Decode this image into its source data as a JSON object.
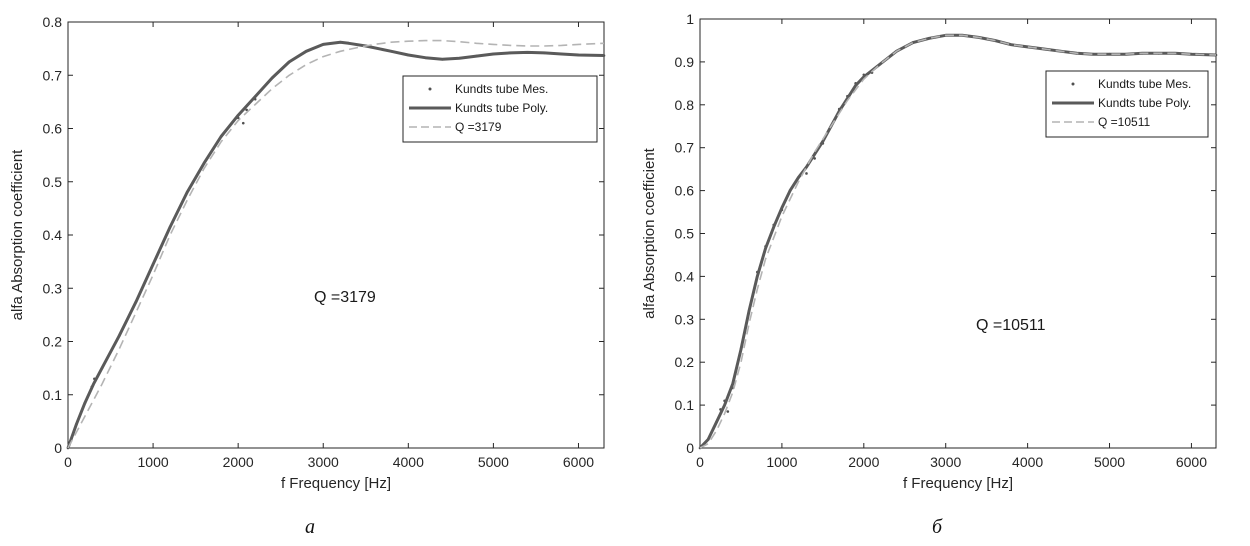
{
  "chart_data": [
    {
      "type": "line",
      "title": "",
      "xlabel": "f Frequency [Hz]",
      "ylabel": "alfa Absorption coefficient",
      "xlim": [
        0,
        6300
      ],
      "ylim": [
        0,
        0.8
      ],
      "xticks": [
        0,
        1000,
        2000,
        3000,
        4000,
        5000,
        6000
      ],
      "yticks": [
        0,
        0.1,
        0.2,
        0.3,
        0.4,
        0.5,
        0.6,
        0.7,
        0.8
      ],
      "ytick_labels": [
        "0",
        "0.1",
        "0.2",
        "0.3",
        "0.4",
        "0.5",
        "0.6",
        "0.7",
        "0.8"
      ],
      "grid": false,
      "legend": "top-right",
      "annotation": "Q =3179",
      "caption": "a",
      "series": [
        {
          "name": "Kundts tube Mes.",
          "style": "dots",
          "color": "#505050",
          "x": [
            0,
            100,
            200,
            280,
            310,
            400,
            600,
            800,
            1000,
            1200,
            1400,
            1600,
            1800,
            2000,
            2060,
            2100,
            2200,
            2400,
            2600,
            2800,
            3000,
            3200,
            3300,
            3500,
            3800,
            4000,
            4200,
            4400,
            4600,
            4800,
            5000,
            5200,
            5400,
            5600,
            5800,
            6000,
            6300
          ],
          "y": [
            0,
            0.045,
            0.085,
            0.115,
            0.13,
            0.15,
            0.21,
            0.275,
            0.345,
            0.415,
            0.48,
            0.535,
            0.585,
            0.62,
            0.61,
            0.635,
            0.655,
            0.695,
            0.725,
            0.745,
            0.758,
            0.762,
            0.76,
            0.755,
            0.745,
            0.738,
            0.733,
            0.73,
            0.732,
            0.736,
            0.74,
            0.742,
            0.743,
            0.742,
            0.74,
            0.738,
            0.737
          ]
        },
        {
          "name": "Kundts tube Poly.",
          "style": "solid",
          "color": "#5a5a5a",
          "x": [
            0,
            100,
            200,
            300,
            400,
            600,
            800,
            1000,
            1200,
            1400,
            1600,
            1800,
            2000,
            2200,
            2400,
            2600,
            2800,
            3000,
            3200,
            3300,
            3500,
            3800,
            4000,
            4200,
            4400,
            4600,
            4800,
            5000,
            5200,
            5400,
            5600,
            5800,
            6000,
            6300
          ],
          "y": [
            0,
            0.045,
            0.085,
            0.12,
            0.15,
            0.21,
            0.275,
            0.345,
            0.415,
            0.48,
            0.535,
            0.585,
            0.625,
            0.66,
            0.695,
            0.725,
            0.745,
            0.758,
            0.762,
            0.76,
            0.755,
            0.745,
            0.738,
            0.733,
            0.73,
            0.732,
            0.736,
            0.74,
            0.742,
            0.743,
            0.742,
            0.74,
            0.738,
            0.737
          ]
        },
        {
          "name": "Q =3179",
          "style": "dashed",
          "color": "#b4b4b4",
          "x": [
            0,
            200,
            400,
            600,
            800,
            1000,
            1200,
            1400,
            1600,
            1800,
            2000,
            2200,
            2400,
            2600,
            2800,
            3000,
            3200,
            3400,
            3600,
            3800,
            4000,
            4200,
            4400,
            4600,
            4800,
            5000,
            5200,
            5400,
            5600,
            5800,
            6000,
            6300
          ],
          "y": [
            0,
            0.06,
            0.12,
            0.185,
            0.255,
            0.325,
            0.4,
            0.465,
            0.525,
            0.575,
            0.615,
            0.645,
            0.675,
            0.7,
            0.72,
            0.735,
            0.745,
            0.752,
            0.758,
            0.762,
            0.764,
            0.765,
            0.765,
            0.763,
            0.76,
            0.758,
            0.756,
            0.755,
            0.755,
            0.756,
            0.758,
            0.76
          ]
        }
      ]
    },
    {
      "type": "line",
      "title": "",
      "xlabel": "f Frequency [Hz]",
      "ylabel": "alfa Absorption coefficient",
      "xlim": [
        0,
        6300
      ],
      "ylim": [
        0,
        1
      ],
      "xticks": [
        0,
        1000,
        2000,
        3000,
        4000,
        5000,
        6000
      ],
      "yticks": [
        0,
        0.1,
        0.2,
        0.3,
        0.4,
        0.5,
        0.6,
        0.7,
        0.8,
        0.9,
        1
      ],
      "ytick_labels": [
        "0",
        "0.1",
        "0.2",
        "0.3",
        "0.4",
        "0.5",
        "0.6",
        "0.7",
        "0.8",
        "0.9",
        "1"
      ],
      "grid": false,
      "legend": "top-right",
      "annotation": "Q =10511",
      "caption": "б",
      "series": [
        {
          "name": "Kundts tube Mes.",
          "style": "dots",
          "color": "#505050",
          "x": [
            0,
            100,
            200,
            250,
            300,
            340,
            400,
            500,
            600,
            700,
            800,
            900,
            1000,
            1100,
            1200,
            1300,
            1400,
            1500,
            1600,
            1700,
            1800,
            1900,
            2000,
            2100,
            2200,
            2400,
            2600,
            2800,
            3000,
            3200,
            3400,
            3600,
            3800,
            4000,
            4200,
            4400,
            4600,
            4800,
            5000,
            5200,
            5400,
            5600,
            5800,
            6000,
            6300
          ],
          "y": [
            0,
            0.02,
            0.06,
            0.09,
            0.11,
            0.085,
            0.14,
            0.23,
            0.32,
            0.41,
            0.47,
            0.52,
            0.555,
            0.6,
            0.63,
            0.64,
            0.675,
            0.71,
            0.75,
            0.79,
            0.82,
            0.85,
            0.87,
            0.875,
            0.895,
            0.925,
            0.945,
            0.955,
            0.962,
            0.962,
            0.957,
            0.95,
            0.94,
            0.935,
            0.93,
            0.925,
            0.92,
            0.918,
            0.918,
            0.918,
            0.92,
            0.92,
            0.92,
            0.918,
            0.916
          ]
        },
        {
          "name": "Kundts tube Poly.",
          "style": "solid",
          "color": "#5a5a5a",
          "x": [
            0,
            100,
            200,
            300,
            400,
            500,
            600,
            700,
            800,
            900,
            1000,
            1100,
            1200,
            1300,
            1400,
            1500,
            1600,
            1700,
            1800,
            1900,
            2000,
            2200,
            2400,
            2600,
            2800,
            3000,
            3200,
            3400,
            3600,
            3800,
            4000,
            4200,
            4400,
            4600,
            4800,
            5000,
            5200,
            5400,
            5600,
            5800,
            6000,
            6300
          ],
          "y": [
            0,
            0.02,
            0.06,
            0.1,
            0.15,
            0.23,
            0.32,
            0.4,
            0.465,
            0.515,
            0.56,
            0.6,
            0.63,
            0.655,
            0.685,
            0.715,
            0.75,
            0.785,
            0.815,
            0.845,
            0.865,
            0.895,
            0.925,
            0.945,
            0.955,
            0.962,
            0.962,
            0.957,
            0.95,
            0.94,
            0.935,
            0.93,
            0.925,
            0.92,
            0.918,
            0.918,
            0.918,
            0.92,
            0.92,
            0.92,
            0.918,
            0.916
          ]
        },
        {
          "name": "Q =10511",
          "style": "dashed",
          "color": "#b4b4b4",
          "x": [
            0,
            100,
            200,
            300,
            400,
            500,
            600,
            700,
            800,
            1000,
            1200,
            1400,
            1600,
            1800,
            2000,
            2200,
            2400,
            2600,
            2800,
            3000,
            3200,
            3400,
            3600,
            3800,
            4000,
            4200,
            4400,
            4600,
            4800,
            5000,
            5200,
            5400,
            5600,
            5800,
            6000,
            6300
          ],
          "y": [
            0,
            0.01,
            0.04,
            0.08,
            0.13,
            0.2,
            0.29,
            0.37,
            0.44,
            0.54,
            0.62,
            0.69,
            0.75,
            0.81,
            0.86,
            0.895,
            0.925,
            0.945,
            0.955,
            0.962,
            0.962,
            0.957,
            0.95,
            0.94,
            0.935,
            0.93,
            0.925,
            0.92,
            0.918,
            0.918,
            0.918,
            0.92,
            0.92,
            0.92,
            0.918,
            0.916
          ]
        }
      ]
    }
  ]
}
